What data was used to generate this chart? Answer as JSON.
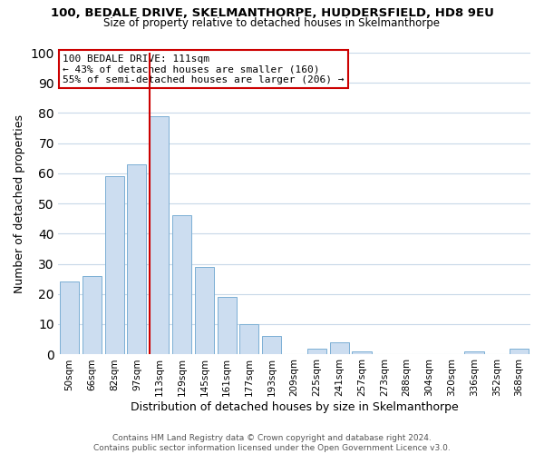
{
  "title": "100, BEDALE DRIVE, SKELMANTHORPE, HUDDERSFIELD, HD8 9EU",
  "subtitle": "Size of property relative to detached houses in Skelmanthorpe",
  "xlabel": "Distribution of detached houses by size in Skelmanthorpe",
  "ylabel": "Number of detached properties",
  "categories": [
    "50sqm",
    "66sqm",
    "82sqm",
    "97sqm",
    "113sqm",
    "129sqm",
    "145sqm",
    "161sqm",
    "177sqm",
    "193sqm",
    "209sqm",
    "225sqm",
    "241sqm",
    "257sqm",
    "273sqm",
    "288sqm",
    "304sqm",
    "320sqm",
    "336sqm",
    "352sqm",
    "368sqm"
  ],
  "values": [
    24,
    26,
    59,
    63,
    79,
    46,
    29,
    19,
    10,
    6,
    0,
    2,
    4,
    1,
    0,
    0,
    0,
    0,
    1,
    0,
    2
  ],
  "bar_color": "#ccddf0",
  "bar_edge_color": "#7bafd4",
  "marker_index": 4,
  "marker_color": "#cc0000",
  "ylim": [
    0,
    100
  ],
  "yticks": [
    0,
    10,
    20,
    30,
    40,
    50,
    60,
    70,
    80,
    90,
    100
  ],
  "annotation_title": "100 BEDALE DRIVE: 111sqm",
  "annotation_line1": "← 43% of detached houses are smaller (160)",
  "annotation_line2": "55% of semi-detached houses are larger (206) →",
  "annotation_box_edge": "#cc0000",
  "footer1": "Contains HM Land Registry data © Crown copyright and database right 2024.",
  "footer2": "Contains public sector information licensed under the Open Government Licence v3.0.",
  "background_color": "#ffffff",
  "grid_color": "#c8d8e8",
  "title_fontsize": 9.5,
  "subtitle_fontsize": 8.5,
  "xlabel_fontsize": 9,
  "ylabel_fontsize": 9,
  "tick_fontsize": 7.5,
  "annotation_fontsize": 8,
  "footer_fontsize": 6.5
}
